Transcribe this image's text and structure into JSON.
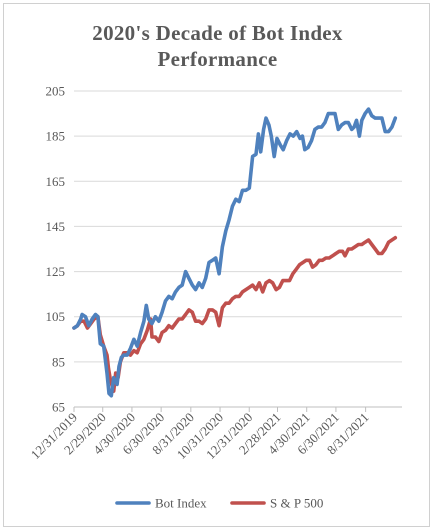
{
  "chart_data": {
    "type": "line",
    "title": "2020's Decade of Bot Index Performance",
    "title_lines": [
      "2020's Decade of Bot Index",
      "Performance"
    ],
    "xlabel": "",
    "ylabel": "",
    "ylim": [
      65,
      205
    ],
    "yticks": [
      65,
      85,
      105,
      125,
      145,
      165,
      185,
      205
    ],
    "x_range": [
      "2019-12-31",
      "2021-11-15"
    ],
    "x_tick_labels": [
      {
        "label": "12/31/2019",
        "date": "2019-12-31"
      },
      {
        "label": "2/29/2020",
        "date": "2020-02-29"
      },
      {
        "label": "4/30/2020",
        "date": "2020-04-30"
      },
      {
        "label": "6/30/2020",
        "date": "2020-06-30"
      },
      {
        "label": "8/31/2020",
        "date": "2020-08-31"
      },
      {
        "label": "10/31/2020",
        "date": "2020-10-31"
      },
      {
        "label": "12/31/2020",
        "date": "2020-12-31"
      },
      {
        "label": "2/28/2021",
        "date": "2021-02-28"
      },
      {
        "label": "4/30/2021",
        "date": "2021-04-30"
      },
      {
        "label": "6/30/2021",
        "date": "2021-06-30"
      },
      {
        "label": "8/31/2021",
        "date": "2021-08-31"
      }
    ],
    "grid": "horizontal",
    "legend_position": "bottom",
    "series": [
      {
        "name": "Bot Index",
        "color": "#4f81bd",
        "points": [
          [
            "2019-12-31",
            100
          ],
          [
            "2020-01-07",
            101
          ],
          [
            "2020-01-14",
            104
          ],
          [
            "2020-01-17",
            106
          ],
          [
            "2020-01-24",
            105
          ],
          [
            "2020-01-31",
            101
          ],
          [
            "2020-02-07",
            104
          ],
          [
            "2020-02-14",
            106
          ],
          [
            "2020-02-19",
            105
          ],
          [
            "2020-02-24",
            93
          ],
          [
            "2020-03-02",
            92
          ],
          [
            "2020-03-09",
            80
          ],
          [
            "2020-03-13",
            71
          ],
          [
            "2020-03-18",
            70
          ],
          [
            "2020-03-23",
            78
          ],
          [
            "2020-03-30",
            75
          ],
          [
            "2020-04-03",
            83
          ],
          [
            "2020-04-08",
            87
          ],
          [
            "2020-04-13",
            88
          ],
          [
            "2020-04-20",
            88
          ],
          [
            "2020-04-27",
            91
          ],
          [
            "2020-05-04",
            95
          ],
          [
            "2020-05-11",
            92
          ],
          [
            "2020-05-18",
            98
          ],
          [
            "2020-05-25",
            103
          ],
          [
            "2020-05-30",
            110
          ],
          [
            "2020-06-04",
            104
          ],
          [
            "2020-06-11",
            102
          ],
          [
            "2020-06-18",
            105
          ],
          [
            "2020-06-25",
            103
          ],
          [
            "2020-07-02",
            107
          ],
          [
            "2020-07-09",
            112
          ],
          [
            "2020-07-16",
            114
          ],
          [
            "2020-07-23",
            113
          ],
          [
            "2020-07-30",
            116
          ],
          [
            "2020-08-06",
            118
          ],
          [
            "2020-08-13",
            119
          ],
          [
            "2020-08-20",
            125
          ],
          [
            "2020-08-27",
            122
          ],
          [
            "2020-09-03",
            119
          ],
          [
            "2020-09-10",
            117
          ],
          [
            "2020-09-17",
            120
          ],
          [
            "2020-09-24",
            118
          ],
          [
            "2020-10-01",
            122
          ],
          [
            "2020-10-08",
            129
          ],
          [
            "2020-10-15",
            130
          ],
          [
            "2020-10-22",
            131
          ],
          [
            "2020-10-29",
            124
          ],
          [
            "2020-11-05",
            136
          ],
          [
            "2020-11-12",
            143
          ],
          [
            "2020-11-19",
            148
          ],
          [
            "2020-11-26",
            154
          ],
          [
            "2020-12-03",
            157
          ],
          [
            "2020-12-10",
            156
          ],
          [
            "2020-12-17",
            161
          ],
          [
            "2020-12-24",
            161
          ],
          [
            "2020-12-31",
            162
          ],
          [
            "2021-01-07",
            176
          ],
          [
            "2021-01-14",
            177
          ],
          [
            "2021-01-19",
            186
          ],
          [
            "2021-01-24",
            178
          ],
          [
            "2021-01-30",
            188
          ],
          [
            "2021-02-04",
            193
          ],
          [
            "2021-02-10",
            190
          ],
          [
            "2021-02-15",
            185
          ],
          [
            "2021-02-21",
            176
          ],
          [
            "2021-02-27",
            184
          ],
          [
            "2021-03-06",
            181
          ],
          [
            "2021-03-12",
            179
          ],
          [
            "2021-03-19",
            183
          ],
          [
            "2021-03-26",
            186
          ],
          [
            "2021-04-02",
            185
          ],
          [
            "2021-04-09",
            187
          ],
          [
            "2021-04-16",
            184
          ],
          [
            "2021-04-21",
            185
          ],
          [
            "2021-04-26",
            179
          ],
          [
            "2021-05-03",
            180
          ],
          [
            "2021-05-10",
            183
          ],
          [
            "2021-05-17",
            188
          ],
          [
            "2021-05-24",
            189
          ],
          [
            "2021-05-31",
            189
          ],
          [
            "2021-06-07",
            191
          ],
          [
            "2021-06-14",
            195
          ],
          [
            "2021-06-21",
            195
          ],
          [
            "2021-06-28",
            195
          ],
          [
            "2021-07-05",
            188
          ],
          [
            "2021-07-12",
            190
          ],
          [
            "2021-07-19",
            191
          ],
          [
            "2021-07-26",
            191
          ],
          [
            "2021-08-02",
            188
          ],
          [
            "2021-08-07",
            189
          ],
          [
            "2021-08-12",
            192
          ],
          [
            "2021-08-18",
            185
          ],
          [
            "2021-08-23",
            192
          ],
          [
            "2021-08-30",
            195
          ],
          [
            "2021-09-06",
            197
          ],
          [
            "2021-09-13",
            194
          ],
          [
            "2021-09-20",
            193
          ],
          [
            "2021-09-27",
            193
          ],
          [
            "2021-10-04",
            193
          ],
          [
            "2021-10-11",
            187
          ],
          [
            "2021-10-18",
            187
          ],
          [
            "2021-10-25",
            189
          ],
          [
            "2021-11-01",
            193
          ]
        ]
      },
      {
        "name": "S & P 500",
        "color": "#c0504d",
        "points": [
          [
            "2019-12-31",
            100
          ],
          [
            "2020-01-07",
            101
          ],
          [
            "2020-01-14",
            103
          ],
          [
            "2020-01-21",
            103
          ],
          [
            "2020-01-28",
            100
          ],
          [
            "2020-02-04",
            102
          ],
          [
            "2020-02-11",
            104
          ],
          [
            "2020-02-19",
            105
          ],
          [
            "2020-02-24",
            97
          ],
          [
            "2020-03-02",
            92
          ],
          [
            "2020-03-09",
            88
          ],
          [
            "2020-03-12",
            82
          ],
          [
            "2020-03-16",
            77
          ],
          [
            "2020-03-23",
            72
          ],
          [
            "2020-03-27",
            80
          ],
          [
            "2020-04-01",
            78
          ],
          [
            "2020-04-06",
            85
          ],
          [
            "2020-04-13",
            89
          ],
          [
            "2020-04-20",
            89
          ],
          [
            "2020-04-27",
            88
          ],
          [
            "2020-05-04",
            90
          ],
          [
            "2020-05-11",
            89
          ],
          [
            "2020-05-18",
            93
          ],
          [
            "2020-05-25",
            95
          ],
          [
            "2020-06-01",
            99
          ],
          [
            "2020-06-08",
            104
          ],
          [
            "2020-06-11",
            96
          ],
          [
            "2020-06-18",
            96
          ],
          [
            "2020-06-25",
            94
          ],
          [
            "2020-07-02",
            98
          ],
          [
            "2020-07-09",
            99
          ],
          [
            "2020-07-16",
            101
          ],
          [
            "2020-07-23",
            100
          ],
          [
            "2020-07-30",
            102
          ],
          [
            "2020-08-06",
            104
          ],
          [
            "2020-08-13",
            104
          ],
          [
            "2020-08-20",
            106
          ],
          [
            "2020-08-27",
            108
          ],
          [
            "2020-09-03",
            107
          ],
          [
            "2020-09-10",
            103
          ],
          [
            "2020-09-17",
            103
          ],
          [
            "2020-09-24",
            102
          ],
          [
            "2020-10-01",
            104
          ],
          [
            "2020-10-08",
            108
          ],
          [
            "2020-10-15",
            108
          ],
          [
            "2020-10-22",
            107
          ],
          [
            "2020-10-29",
            101
          ],
          [
            "2020-11-05",
            109
          ],
          [
            "2020-11-12",
            111
          ],
          [
            "2020-11-19",
            111
          ],
          [
            "2020-11-26",
            113
          ],
          [
            "2020-12-03",
            114
          ],
          [
            "2020-12-10",
            114
          ],
          [
            "2020-12-17",
            116
          ],
          [
            "2020-12-24",
            117
          ],
          [
            "2020-12-31",
            118
          ],
          [
            "2021-01-07",
            119
          ],
          [
            "2021-01-14",
            117
          ],
          [
            "2021-01-21",
            120
          ],
          [
            "2021-01-28",
            116
          ],
          [
            "2021-02-04",
            120
          ],
          [
            "2021-02-11",
            121
          ],
          [
            "2021-02-18",
            120
          ],
          [
            "2021-02-25",
            117
          ],
          [
            "2021-03-04",
            118
          ],
          [
            "2021-03-11",
            121
          ],
          [
            "2021-03-18",
            121
          ],
          [
            "2021-03-25",
            121
          ],
          [
            "2021-04-01",
            124
          ],
          [
            "2021-04-08",
            126
          ],
          [
            "2021-04-15",
            128
          ],
          [
            "2021-04-22",
            129
          ],
          [
            "2021-04-29",
            130
          ],
          [
            "2021-05-06",
            130
          ],
          [
            "2021-05-12",
            127
          ],
          [
            "2021-05-19",
            128
          ],
          [
            "2021-05-26",
            130
          ],
          [
            "2021-06-02",
            130
          ],
          [
            "2021-06-09",
            131
          ],
          [
            "2021-06-16",
            131
          ],
          [
            "2021-06-23",
            132
          ],
          [
            "2021-06-30",
            133
          ],
          [
            "2021-07-07",
            134
          ],
          [
            "2021-07-14",
            134
          ],
          [
            "2021-07-19",
            132
          ],
          [
            "2021-07-26",
            135
          ],
          [
            "2021-08-02",
            135
          ],
          [
            "2021-08-09",
            136
          ],
          [
            "2021-08-16",
            137
          ],
          [
            "2021-08-23",
            137
          ],
          [
            "2021-08-30",
            138
          ],
          [
            "2021-09-06",
            139
          ],
          [
            "2021-09-13",
            137
          ],
          [
            "2021-09-20",
            135
          ],
          [
            "2021-09-27",
            133
          ],
          [
            "2021-10-04",
            133
          ],
          [
            "2021-10-11",
            135
          ],
          [
            "2021-10-18",
            138
          ],
          [
            "2021-10-25",
            139
          ],
          [
            "2021-11-01",
            140
          ]
        ]
      }
    ]
  }
}
